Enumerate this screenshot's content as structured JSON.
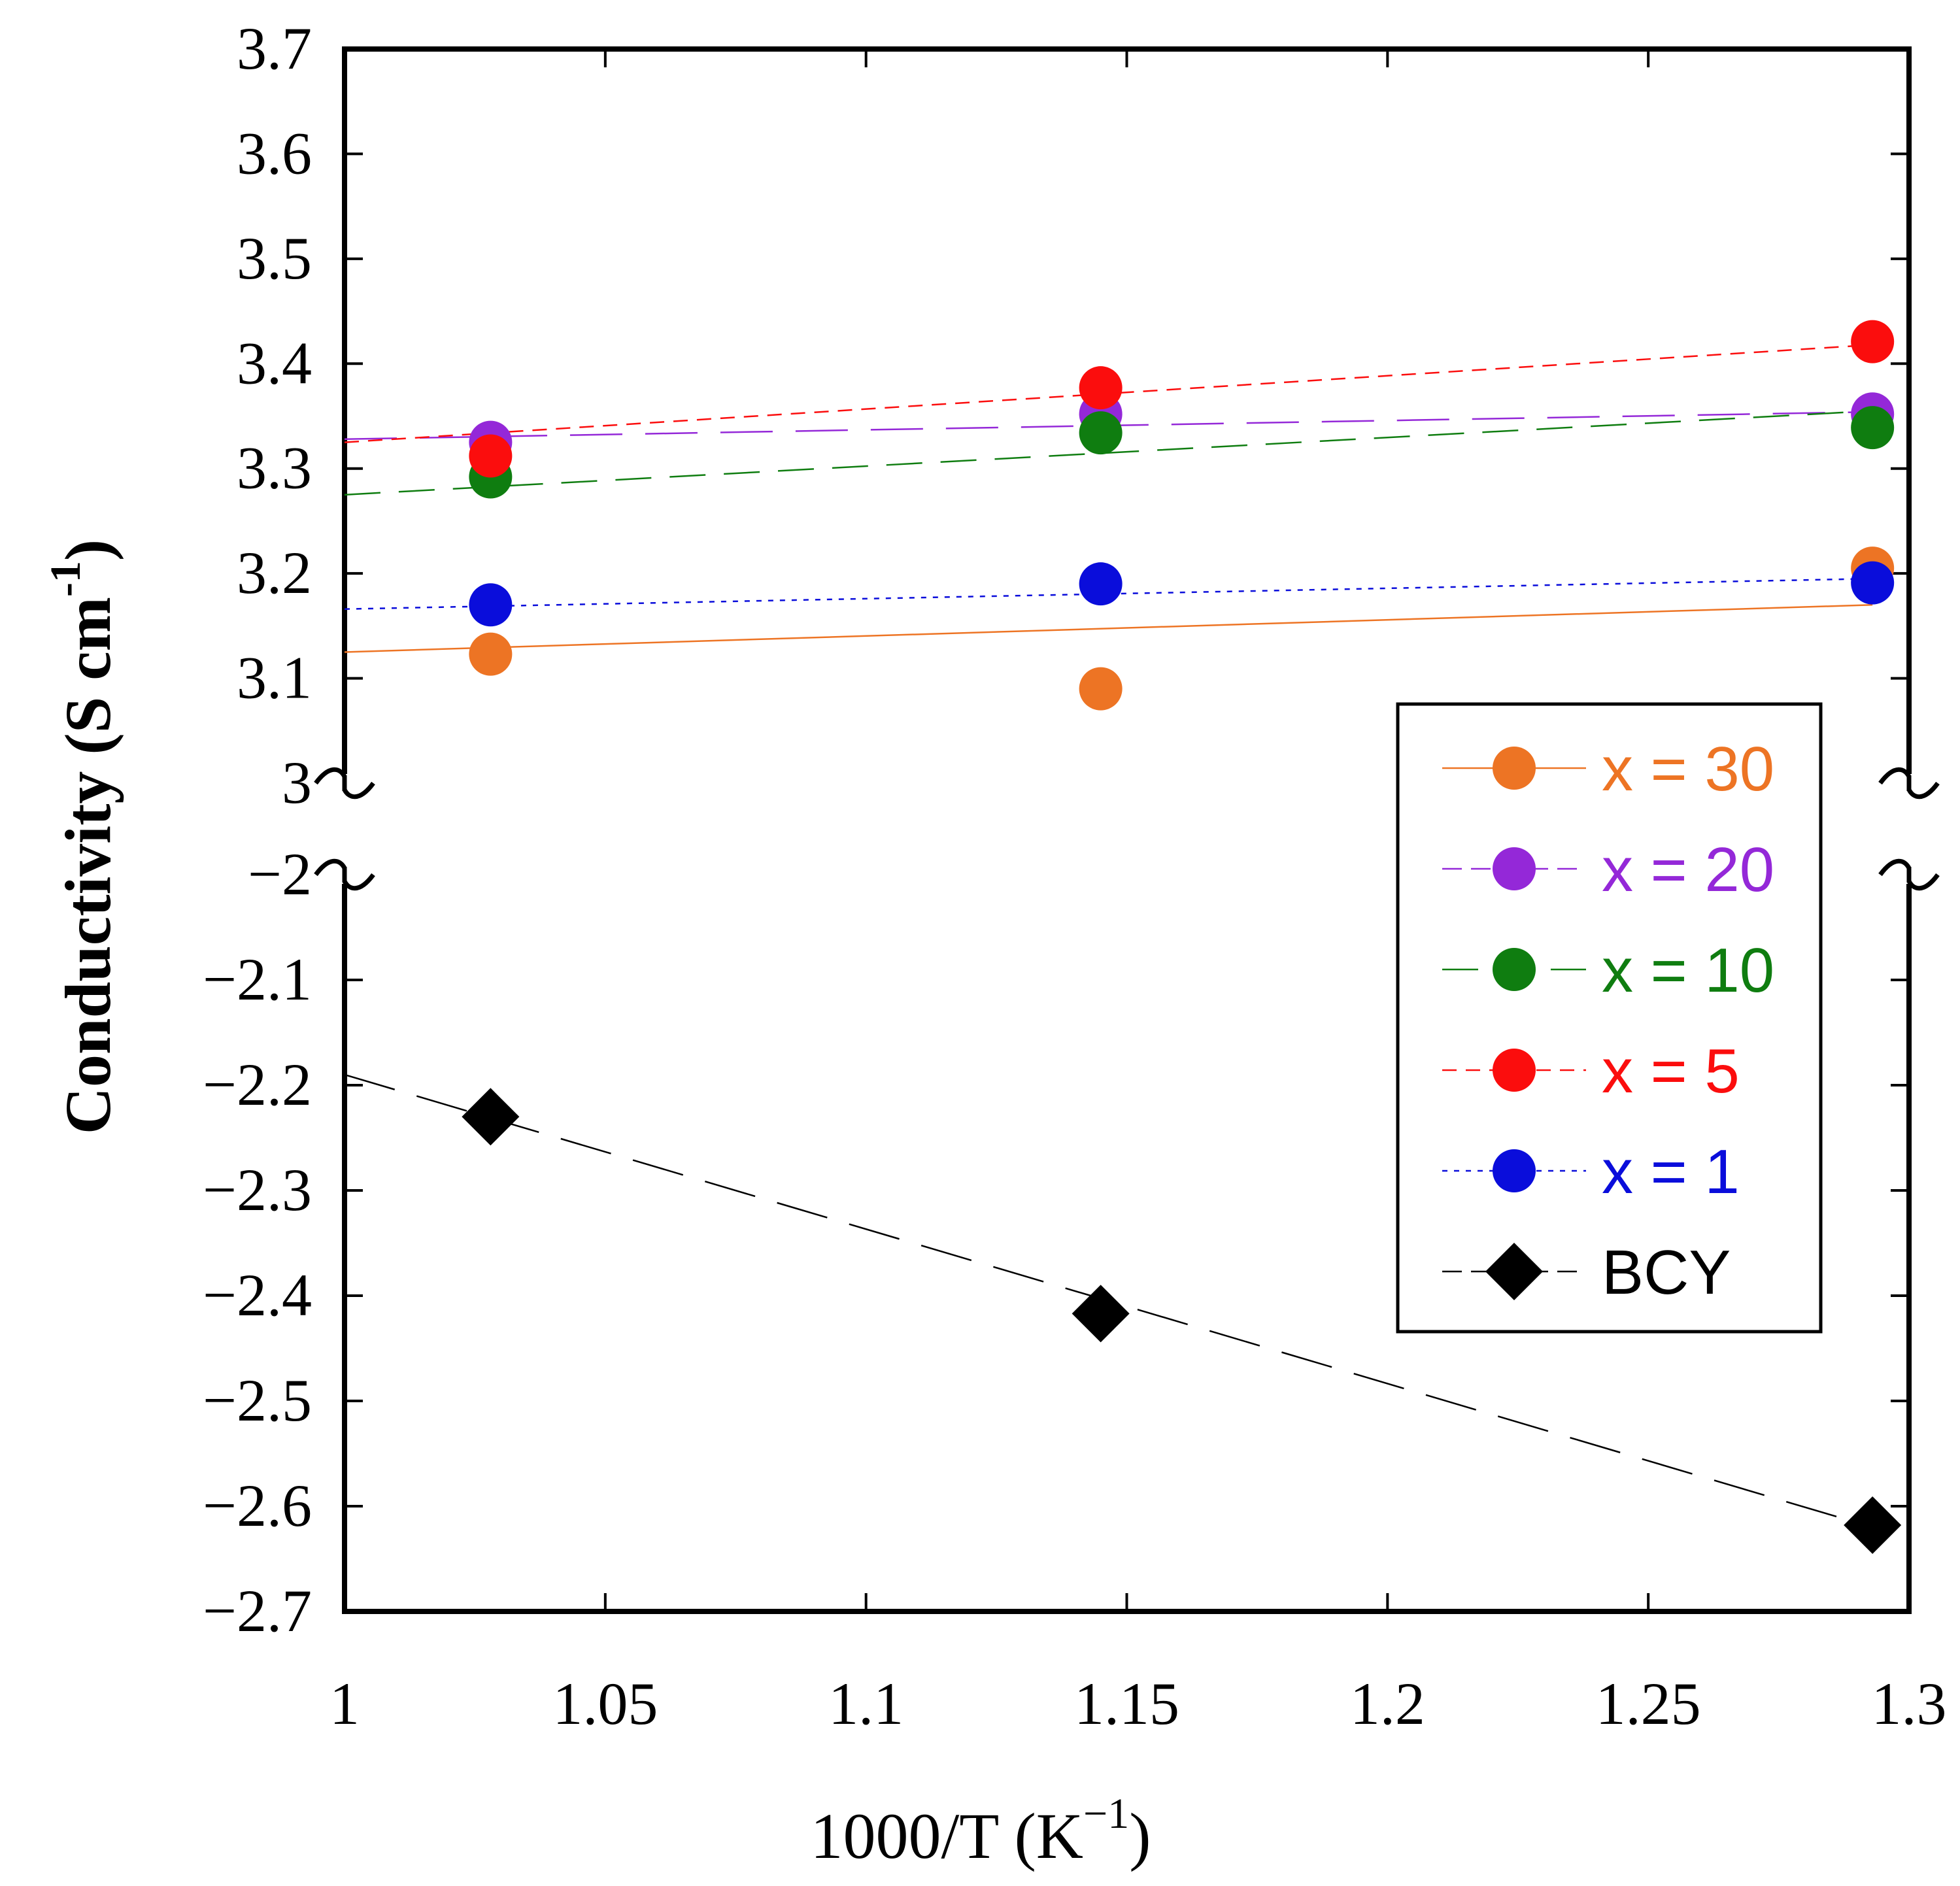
{
  "chart_data": {
    "type": "scatter",
    "title": "",
    "xlabel": "1000/T (K",
    "xlabel_sup": "−1",
    "xlabel_close": ")",
    "ylabel": "Conductivity (S cm",
    "ylabel_sup": "-1",
    "ylabel_close": ")",
    "xlim": [
      1.0,
      1.3
    ],
    "x_ticks": [
      1.0,
      1.05,
      1.1,
      1.15,
      1.2,
      1.25,
      1.3
    ],
    "x_tick_labels": [
      "1",
      "1.05",
      "1.1",
      "1.15",
      "1.2",
      "1.25",
      "1.3"
    ],
    "broken_axis": true,
    "upper_ylim": [
      3.0,
      3.7
    ],
    "upper_y_ticks": [
      3.0,
      3.1,
      3.2,
      3.3,
      3.4,
      3.5,
      3.6,
      3.7
    ],
    "upper_y_tick_labels": [
      "3",
      "3.1",
      "3.2",
      "3.3",
      "3.4",
      "3.5",
      "3.6",
      "3.7"
    ],
    "lower_ylim": [
      -2.7,
      -2.0
    ],
    "lower_y_ticks": [
      -2.0,
      -2.1,
      -2.2,
      -2.3,
      -2.4,
      -2.5,
      -2.6,
      -2.7
    ],
    "lower_y_tick_labels": [
      "−2",
      "−2.1",
      "−2.2",
      "−2.3",
      "−2.4",
      "−2.5",
      "−2.6",
      "−2.7"
    ],
    "legend_position": "right",
    "series": [
      {
        "name": "x = 30",
        "color": "#ed7424",
        "marker": "circle",
        "panel": "upper",
        "line": "solid",
        "x": [
          1.028,
          1.145,
          1.293
        ],
        "y": [
          3.123,
          3.09,
          3.205
        ],
        "fit": [
          [
            1.0,
            3.125
          ],
          [
            1.293,
            3.17
          ]
        ]
      },
      {
        "name": "x = 20",
        "color": "#9428d8",
        "marker": "circle",
        "panel": "upper",
        "line": "longdash",
        "x": [
          1.028,
          1.145,
          1.293
        ],
        "y": [
          3.325,
          3.352,
          3.352
        ],
        "fit": [
          [
            1.0,
            3.328
          ],
          [
            1.293,
            3.354
          ]
        ]
      },
      {
        "name": "x = 10",
        "color": "#0f7d10",
        "marker": "circle",
        "panel": "upper",
        "line": "dashed",
        "x": [
          1.028,
          1.145,
          1.293
        ],
        "y": [
          3.292,
          3.334,
          3.339
        ],
        "fit": [
          [
            1.0,
            3.275
          ],
          [
            1.293,
            3.355
          ]
        ]
      },
      {
        "name": "x = 5",
        "color": "#fb0d0d",
        "marker": "circle",
        "panel": "upper",
        "line": "shortdash",
        "x": [
          1.028,
          1.145,
          1.293
        ],
        "y": [
          3.312,
          3.377,
          3.421
        ],
        "fit": [
          [
            1.0,
            3.325
          ],
          [
            1.293,
            3.418
          ]
        ]
      },
      {
        "name": "x = 1",
        "color": "#0a0ddb",
        "marker": "circle",
        "panel": "upper",
        "line": "dotted",
        "x": [
          1.028,
          1.145,
          1.293
        ],
        "y": [
          3.17,
          3.19,
          3.191
        ],
        "fit": [
          [
            1.0,
            3.166
          ],
          [
            1.293,
            3.195
          ]
        ]
      },
      {
        "name": "BCY",
        "color": "#000000",
        "marker": "diamond",
        "panel": "lower",
        "line": "longdash",
        "x": [
          1.028,
          1.145,
          1.293
        ],
        "y": [
          -2.23,
          -2.417,
          -2.618
        ],
        "fit": [
          [
            1.0,
            -2.19
          ],
          [
            1.293,
            -2.62
          ]
        ]
      }
    ]
  }
}
